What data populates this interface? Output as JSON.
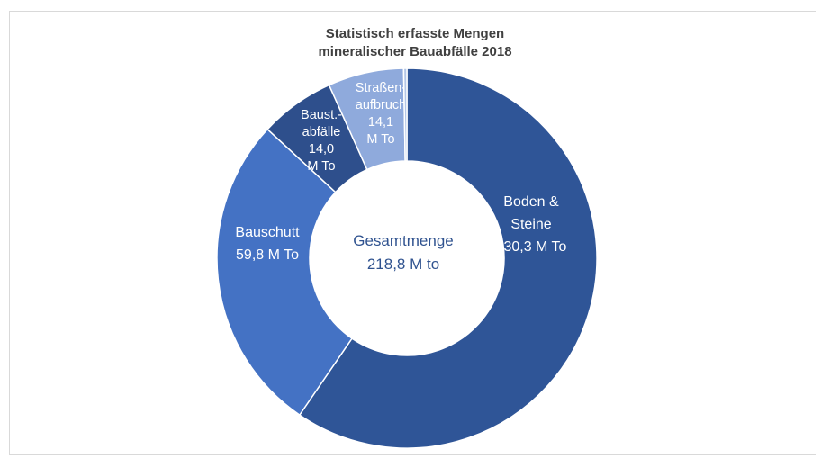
{
  "chart_data": {
    "type": "donut",
    "title_lines": [
      "Statistisch erfasste Mengen",
      "mineralischer Bauabfälle 2018"
    ],
    "center_label": [
      "Gesamtmenge",
      "218,8 M to"
    ],
    "total": 218.8,
    "unit": "M To",
    "slices": [
      {
        "name": "Boden & Steine",
        "value": 130.3,
        "label_lines": [
          "Boden  &",
          "Steine",
          "130,3 M To"
        ],
        "color": "#2f5597"
      },
      {
        "name": "Bauschutt",
        "value": 59.8,
        "label_lines": [
          "Bauschutt",
          "59,8 M To"
        ],
        "color": "#4472c4"
      },
      {
        "name": "Baust.-abfälle",
        "value": 14.0,
        "label_lines": [
          "Baust.-",
          "abfälle",
          "14,0",
          "M To"
        ],
        "color": "#2e4f8c"
      },
      {
        "name": "Straßenaufbruch",
        "value": 14.1,
        "label_lines": [
          "Straßen-",
          "aufbruch",
          "14,1",
          "M To"
        ],
        "color": "#8faadc"
      },
      {
        "name": "",
        "value": 0.6,
        "label_lines": [],
        "color": "#b4c7e7"
      }
    ]
  }
}
